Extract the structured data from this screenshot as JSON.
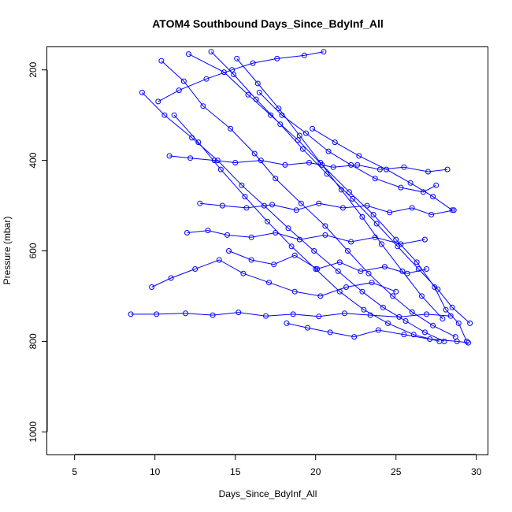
{
  "chart_data": {
    "type": "scatter",
    "title": "ATOM4 Southbound Days_Since_BdyInf_All",
    "xlabel": "Days_Since_BdyInf_All",
    "ylabel": "Pressure (mbar)",
    "xlim": [
      3.3,
      30.7
    ],
    "ylim": [
      1050,
      150
    ],
    "y_axis_reversed": true,
    "x_ticks": [
      5,
      10,
      15,
      20,
      25,
      30
    ],
    "y_ticks": [
      200,
      400,
      600,
      800,
      1000
    ],
    "grid": false,
    "legend": "none",
    "series_color": "#0000ff",
    "marker": "open-circle",
    "connected_with_lines": true,
    "series": [
      {
        "x": [
          12.1,
          14.3,
          15.8,
          17.2,
          18.9,
          20.4,
          22.1,
          23.6,
          25.0,
          26.3,
          27.4,
          28.1,
          28.9,
          29.4
        ],
        "y": [
          165,
          205,
          255,
          300,
          355,
          410,
          470,
          520,
          575,
          625,
          680,
          730,
          760,
          800
        ]
      },
      {
        "x": [
          9.2,
          10.6,
          12.3,
          13.9,
          15.4,
          16.8,
          18.3,
          19.9,
          21.4,
          22.9,
          24.2,
          25.6,
          26.8,
          28.0
        ],
        "y": [
          250,
          300,
          350,
          400,
          455,
          500,
          550,
          600,
          645,
          690,
          725,
          755,
          780,
          800
        ]
      },
      {
        "x": [
          10.4,
          11.8,
          13.0,
          14.7,
          16.2,
          17.5,
          19.1,
          20.6,
          22.0,
          23.3,
          24.8,
          26.0,
          27.3,
          28.7
        ],
        "y": [
          180,
          225,
          280,
          330,
          385,
          440,
          495,
          545,
          600,
          650,
          700,
          735,
          765,
          790
        ]
      },
      {
        "x": [
          13.5,
          14.9,
          16.3,
          17.8,
          19.2,
          20.7,
          22.3,
          23.8,
          25.1,
          26.4,
          27.6,
          28.5,
          29.6
        ],
        "y": [
          160,
          210,
          265,
          320,
          375,
          430,
          485,
          540,
          590,
          640,
          685,
          725,
          760
        ]
      },
      {
        "x": [
          8.5,
          10.1,
          11.9,
          13.6,
          15.2,
          16.9,
          18.6,
          20.2,
          21.8,
          23.4,
          25.2,
          26.9,
          28.4
        ],
        "y": [
          740,
          740,
          738,
          742,
          736,
          744,
          740,
          745,
          738,
          742,
          746,
          740,
          744
        ]
      },
      {
        "x": [
          11.2,
          12.7,
          14.1,
          15.6,
          17.0,
          18.5,
          20.0,
          21.5,
          23.0,
          24.5,
          26.1,
          27.7
        ],
        "y": [
          300,
          360,
          420,
          480,
          535,
          590,
          640,
          690,
          730,
          760,
          785,
          800
        ]
      },
      {
        "x": [
          15.1,
          16.4,
          17.7,
          19.0,
          20.3,
          21.6,
          22.9,
          24.1,
          25.4,
          26.6,
          27.9
        ],
        "y": [
          175,
          230,
          285,
          345,
          405,
          465,
          525,
          585,
          645,
          700,
          750
        ]
      },
      {
        "x": [
          9.8,
          11.0,
          12.5,
          14.0,
          15.5,
          17.1,
          18.7,
          20.3,
          21.9,
          23.5,
          25.0
        ],
        "y": [
          680,
          660,
          640,
          620,
          650,
          670,
          690,
          700,
          680,
          670,
          690
        ]
      },
      {
        "x": [
          12.8,
          14.2,
          15.7,
          17.3,
          18.8,
          20.2,
          21.7,
          23.2,
          24.6,
          26.0,
          27.2,
          28.6
        ],
        "y": [
          495,
          500,
          505,
          498,
          510,
          495,
          505,
          500,
          515,
          505,
          520,
          510
        ]
      },
      {
        "x": [
          16.5,
          17.9,
          19.4,
          20.8,
          22.2,
          23.7,
          25.3,
          26.7,
          27.5
        ],
        "y": [
          250,
          300,
          340,
          380,
          410,
          440,
          460,
          470,
          455
        ]
      },
      {
        "x": [
          10.9,
          12.2,
          13.7,
          15.0,
          16.6,
          18.1,
          19.6,
          21.1,
          22.6,
          24.0,
          25.5,
          27.0,
          28.2
        ],
        "y": [
          390,
          395,
          400,
          405,
          400,
          410,
          405,
          415,
          410,
          420,
          415,
          425,
          420
        ]
      },
      {
        "x": [
          14.6,
          16.0,
          17.4,
          18.7,
          20.1,
          21.5,
          22.8,
          24.3,
          25.7,
          26.9
        ],
        "y": [
          600,
          620,
          630,
          610,
          640,
          625,
          645,
          635,
          650,
          640
        ]
      },
      {
        "x": [
          18.2,
          19.5,
          20.9,
          22.4,
          23.9,
          25.5,
          27.1,
          28.8,
          29.5
        ],
        "y": [
          760,
          770,
          780,
          790,
          775,
          785,
          795,
          800,
          803
        ]
      },
      {
        "x": [
          10.2,
          11.5,
          13.2,
          14.8,
          16.1,
          17.6,
          19.3,
          20.5
        ],
        "y": [
          270,
          245,
          220,
          200,
          185,
          175,
          168,
          160
        ]
      },
      {
        "x": [
          19.8,
          21.2,
          22.7,
          24.4,
          25.9,
          27.3,
          28.5
        ],
        "y": [
          330,
          360,
          390,
          420,
          450,
          480,
          510
        ]
      },
      {
        "x": [
          12.0,
          13.3,
          14.5,
          16.0,
          17.5,
          19.0,
          20.6,
          22.2,
          23.7,
          25.3,
          26.8
        ],
        "y": [
          560,
          555,
          565,
          570,
          560,
          575,
          565,
          580,
          570,
          585,
          575
        ]
      }
    ]
  }
}
